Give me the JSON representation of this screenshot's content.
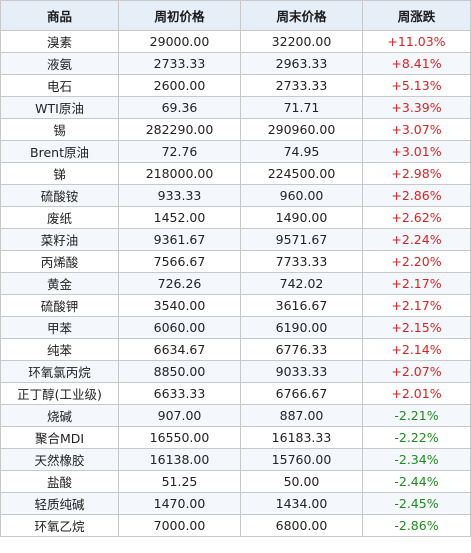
{
  "table": {
    "headers": [
      "商品",
      "周初价格",
      "周末价格",
      "周涨跌"
    ],
    "rows": [
      {
        "name": "溴素",
        "start": "29000.00",
        "end": "32200.00",
        "change": "+11.03%",
        "dir": "up"
      },
      {
        "name": "液氨",
        "start": "2733.33",
        "end": "2963.33",
        "change": "+8.41%",
        "dir": "up"
      },
      {
        "name": "电石",
        "start": "2600.00",
        "end": "2733.33",
        "change": "+5.13%",
        "dir": "up"
      },
      {
        "name": "WTI原油",
        "start": "69.36",
        "end": "71.71",
        "change": "+3.39%",
        "dir": "up"
      },
      {
        "name": "锡",
        "start": "282290.00",
        "end": "290960.00",
        "change": "+3.07%",
        "dir": "up"
      },
      {
        "name": "Brent原油",
        "start": "72.76",
        "end": "74.95",
        "change": "+3.01%",
        "dir": "up"
      },
      {
        "name": "锑",
        "start": "218000.00",
        "end": "224500.00",
        "change": "+2.98%",
        "dir": "up"
      },
      {
        "name": "硫酸铵",
        "start": "933.33",
        "end": "960.00",
        "change": "+2.86%",
        "dir": "up"
      },
      {
        "name": "废纸",
        "start": "1452.00",
        "end": "1490.00",
        "change": "+2.62%",
        "dir": "up"
      },
      {
        "name": "菜籽油",
        "start": "9361.67",
        "end": "9571.67",
        "change": "+2.24%",
        "dir": "up"
      },
      {
        "name": "丙烯酸",
        "start": "7566.67",
        "end": "7733.33",
        "change": "+2.20%",
        "dir": "up"
      },
      {
        "name": "黄金",
        "start": "726.26",
        "end": "742.02",
        "change": "+2.17%",
        "dir": "up"
      },
      {
        "name": "硫酸钾",
        "start": "3540.00",
        "end": "3616.67",
        "change": "+2.17%",
        "dir": "up"
      },
      {
        "name": "甲苯",
        "start": "6060.00",
        "end": "6190.00",
        "change": "+2.15%",
        "dir": "up"
      },
      {
        "name": "纯苯",
        "start": "6634.67",
        "end": "6776.33",
        "change": "+2.14%",
        "dir": "up"
      },
      {
        "name": "环氧氯丙烷",
        "start": "8850.00",
        "end": "9033.33",
        "change": "+2.07%",
        "dir": "up"
      },
      {
        "name": "正丁醇(工业级)",
        "start": "6633.33",
        "end": "6766.67",
        "change": "+2.01%",
        "dir": "up"
      },
      {
        "name": "烧碱",
        "start": "907.00",
        "end": "887.00",
        "change": "-2.21%",
        "dir": "down"
      },
      {
        "name": "聚合MDI",
        "start": "16550.00",
        "end": "16183.33",
        "change": "-2.22%",
        "dir": "down"
      },
      {
        "name": "天然橡胶",
        "start": "16138.00",
        "end": "15760.00",
        "change": "-2.34%",
        "dir": "down"
      },
      {
        "name": "盐酸",
        "start": "51.25",
        "end": "50.00",
        "change": "-2.44%",
        "dir": "down"
      },
      {
        "name": "轻质纯碱",
        "start": "1470.00",
        "end": "1434.00",
        "change": "-2.45%",
        "dir": "down"
      },
      {
        "name": "环氧乙烷",
        "start": "7000.00",
        "end": "6800.00",
        "change": "-2.86%",
        "dir": "down"
      }
    ]
  },
  "colors": {
    "header_bg": "#e6eef8",
    "up": "#e02020",
    "down": "#1f8a1f",
    "border": "#c8c8c8"
  }
}
